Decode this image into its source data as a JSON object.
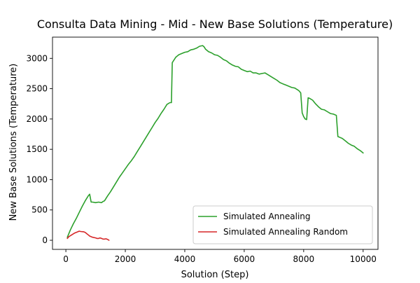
{
  "chart_data": {
    "type": "line",
    "title": "Consulta Data Mining - Mid - New Base Solutions (Temperature)",
    "xlabel": "Solution (Step)",
    "ylabel": "New Base Solutions (Temperature)",
    "xlim": [
      -450,
      10500
    ],
    "ylim": [
      -150,
      3350
    ],
    "xticks": [
      0,
      2000,
      4000,
      6000,
      8000,
      10000
    ],
    "xtick_labels": [
      "0",
      "2000",
      "4000",
      "6000",
      "8000",
      "10000"
    ],
    "yticks": [
      0,
      500,
      1000,
      1500,
      2000,
      2500,
      3000
    ],
    "ytick_labels": [
      "0",
      "500",
      "1000",
      "1500",
      "2000",
      "2500",
      "3000"
    ],
    "grid": false,
    "legend_position": "lower-right",
    "series": [
      {
        "name": "Simulated Annealing",
        "color": "#2ca02c",
        "x": [
          50,
          150,
          250,
          350,
          450,
          550,
          650,
          750,
          800,
          850,
          900,
          1000,
          1100,
          1200,
          1250,
          1300,
          1400,
          1500,
          1600,
          1700,
          1800,
          1900,
          2000,
          2100,
          2200,
          2300,
          2400,
          2500,
          2600,
          2700,
          2800,
          2900,
          3000,
          3100,
          3200,
          3300,
          3400,
          3500,
          3550,
          3580,
          3620,
          3700,
          3800,
          3900,
          4000,
          4100,
          4200,
          4300,
          4400,
          4500,
          4600,
          4650,
          4700,
          4800,
          4900,
          5000,
          5100,
          5200,
          5300,
          5400,
          5500,
          5600,
          5700,
          5800,
          5900,
          6000,
          6100,
          6200,
          6300,
          6400,
          6500,
          6600,
          6700,
          6800,
          6900,
          7000,
          7100,
          7200,
          7300,
          7400,
          7500,
          7600,
          7700,
          7800,
          7850,
          7900,
          7950,
          8000,
          8050,
          8100,
          8150,
          8200,
          8300,
          8400,
          8500,
          8600,
          8700,
          8800,
          8900,
          9000,
          9100,
          9150,
          9200,
          9300,
          9400,
          9500,
          9600,
          9700,
          9800,
          9900,
          10000
        ],
        "values": [
          50,
          170,
          270,
          360,
          460,
          560,
          650,
          730,
          760,
          630,
          630,
          620,
          630,
          620,
          640,
          650,
          730,
          800,
          880,
          960,
          1040,
          1110,
          1180,
          1250,
          1310,
          1380,
          1460,
          1540,
          1620,
          1700,
          1780,
          1860,
          1940,
          2010,
          2090,
          2160,
          2240,
          2270,
          2270,
          2930,
          2960,
          3020,
          3060,
          3080,
          3100,
          3110,
          3140,
          3150,
          3170,
          3200,
          3210,
          3190,
          3150,
          3110,
          3090,
          3060,
          3050,
          3020,
          2980,
          2960,
          2920,
          2890,
          2870,
          2860,
          2820,
          2800,
          2780,
          2790,
          2760,
          2760,
          2740,
          2750,
          2760,
          2730,
          2700,
          2670,
          2640,
          2600,
          2580,
          2560,
          2540,
          2520,
          2510,
          2480,
          2460,
          2430,
          2100,
          2040,
          2000,
          1990,
          2350,
          2340,
          2310,
          2250,
          2200,
          2160,
          2150,
          2120,
          2090,
          2080,
          2060,
          1710,
          1700,
          1680,
          1640,
          1600,
          1570,
          1550,
          1510,
          1480,
          1440
        ]
      },
      {
        "name": "Simulated Annealing Random",
        "color": "#d62728",
        "x": [
          50,
          100,
          200,
          300,
          400,
          450,
          500,
          600,
          650,
          700,
          750,
          800,
          900,
          1000,
          1050,
          1100,
          1150,
          1200,
          1250,
          1300,
          1350,
          1400,
          1450
        ],
        "values": [
          30,
          60,
          90,
          120,
          140,
          150,
          145,
          140,
          130,
          110,
          90,
          70,
          50,
          40,
          30,
          30,
          40,
          30,
          20,
          20,
          25,
          15,
          0
        ]
      }
    ]
  }
}
